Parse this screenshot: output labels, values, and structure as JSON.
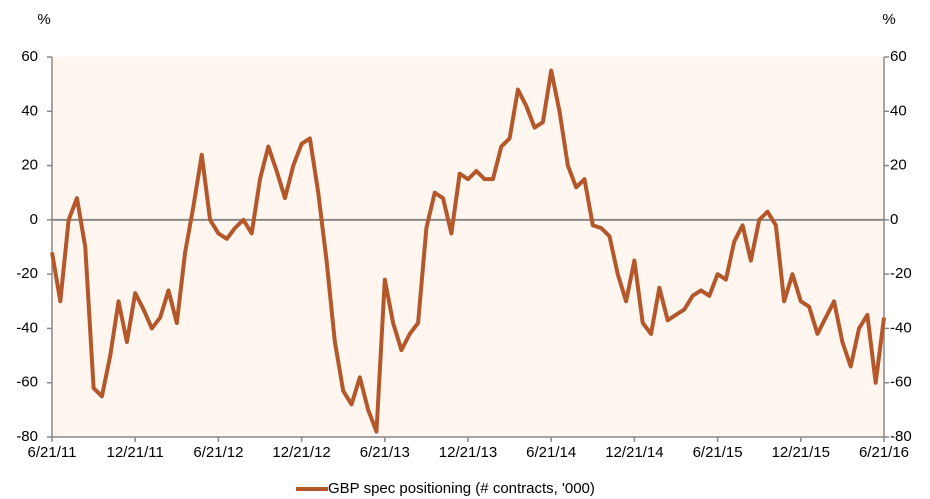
{
  "chart_data": {
    "type": "line",
    "y_label": "%",
    "y2_label": "%",
    "categories": [
      "6/21/11",
      null,
      null,
      null,
      null,
      null,
      null,
      null,
      null,
      null,
      "12/21/11",
      null,
      null,
      null,
      null,
      null,
      null,
      null,
      null,
      null,
      "6/21/12",
      null,
      null,
      null,
      null,
      null,
      null,
      null,
      null,
      null,
      "12/21/12",
      null,
      null,
      null,
      null,
      null,
      null,
      null,
      null,
      null,
      "6/21/13",
      null,
      null,
      null,
      null,
      null,
      null,
      null,
      null,
      null,
      "12/21/13",
      null,
      null,
      null,
      null,
      null,
      null,
      null,
      null,
      null,
      "6/21/14",
      null,
      null,
      null,
      null,
      null,
      null,
      null,
      null,
      null,
      "12/21/14",
      null,
      null,
      null,
      null,
      null,
      null,
      null,
      null,
      null,
      "6/21/15",
      null,
      null,
      null,
      null,
      null,
      null,
      null,
      null,
      null,
      "12/21/15",
      null,
      null,
      null,
      null,
      null,
      null,
      null,
      null,
      null,
      "6/21/16"
    ],
    "series": [
      {
        "name": "GBP spec positioning (# contracts, '000)",
        "color": "#b4582c",
        "values": [
          -12,
          -30,
          0,
          8,
          -10,
          -62,
          -65,
          -50,
          -30,
          -45,
          -27,
          -33,
          -40,
          -36,
          -26,
          -38,
          -12,
          5,
          24,
          0,
          -5,
          -7,
          -3,
          0,
          -5,
          15,
          27,
          18,
          8,
          20,
          28,
          30,
          10,
          -15,
          -45,
          -63,
          -68,
          -58,
          -70,
          -78,
          -22,
          -38,
          -48,
          -42,
          -38,
          -3,
          10,
          8,
          -5,
          17,
          15,
          18,
          15,
          15,
          27,
          30,
          48,
          42,
          34,
          36,
          55,
          40,
          20,
          12,
          15,
          -2,
          -3,
          -6,
          -20,
          -30,
          -15,
          -38,
          -42,
          -25,
          -37,
          -35,
          -33,
          -28,
          -26,
          -28,
          -20,
          -22,
          -8,
          -2,
          -15,
          0,
          3,
          -2,
          -30,
          -20,
          -30,
          -32,
          -42,
          -36,
          -30,
          -45,
          -54,
          -40,
          -35,
          -60,
          -36
        ]
      }
    ],
    "ylim": [
      -80,
      60
    ],
    "yticks": [
      -80,
      -60,
      -40,
      -20,
      0,
      20,
      40,
      60
    ],
    "y2lim": [
      -80,
      60
    ],
    "y2ticks": [
      -80,
      -60,
      -40,
      -20,
      0,
      20,
      40,
      60
    ],
    "legend": "bottom"
  }
}
